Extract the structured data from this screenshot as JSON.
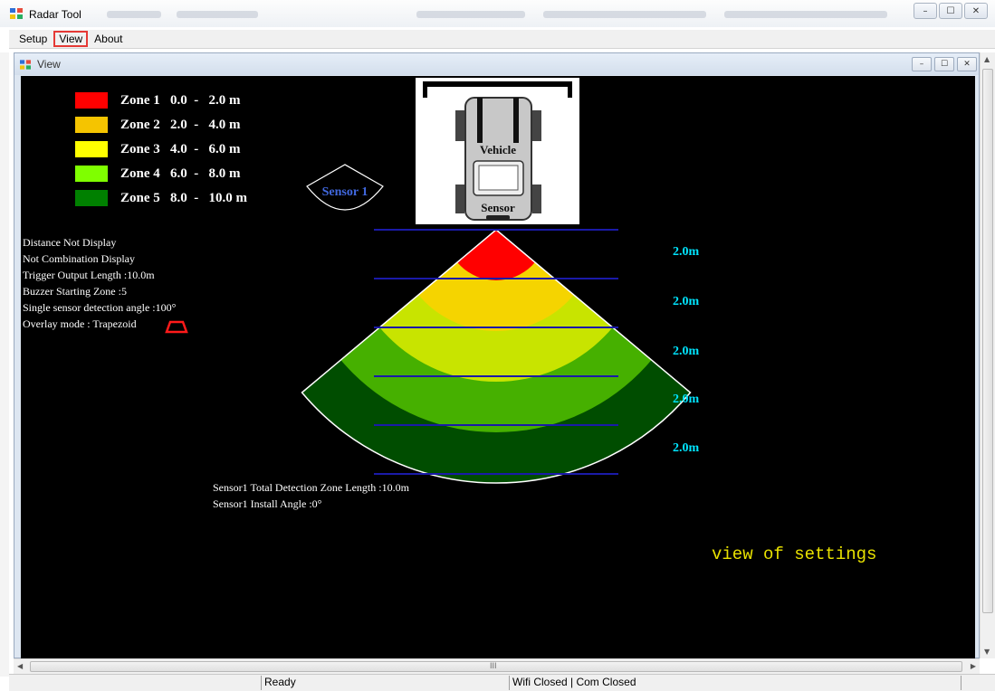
{
  "window": {
    "title": "Radar Tool",
    "controls": {
      "minimize": "–",
      "maximize": "☐",
      "close": "✕"
    }
  },
  "menu": {
    "items": [
      {
        "label": "Setup",
        "highlighted": false
      },
      {
        "label": "View",
        "highlighted": true
      },
      {
        "label": "About",
        "highlighted": false
      }
    ]
  },
  "child_window": {
    "title": "View",
    "controls": {
      "minimize": "–",
      "maximize": "☐",
      "close": "✕"
    }
  },
  "legend": {
    "zones": [
      {
        "label": "Zone 1",
        "from": "0.0",
        "to": "2.0 m",
        "color": "#ff0000"
      },
      {
        "label": "Zone 2",
        "from": "2.0",
        "to": "4.0 m",
        "color": "#f5c400"
      },
      {
        "label": "Zone 3",
        "from": "4.0",
        "to": "6.0 m",
        "color": "#ffff00"
      },
      {
        "label": "Zone 4",
        "from": "6.0",
        "to": "8.0 m",
        "color": "#7fff00"
      },
      {
        "label": "Zone 5",
        "from": "8.0",
        "to": "10.0 m",
        "color": "#008000"
      }
    ]
  },
  "sensor_badge": {
    "label": "Sensor 1"
  },
  "vehicle": {
    "vehicle_label": "Vehicle",
    "sensor_label": "Sensor"
  },
  "info_lines": [
    "Distance Not Display",
    "Not Combination Display",
    "Trigger Output Length :10.0m",
    "Buzzer Starting Zone :5",
    "Single sensor detection angle :100°",
    "Overlay mode : Trapezoid"
  ],
  "distance_labels": [
    "2.0m",
    "2.0m",
    "2.0m",
    "2.0m",
    "2.0m"
  ],
  "radar_fan": {
    "detection_angle_deg": 100,
    "zone_colors": [
      "#ff0000",
      "#f5d400",
      "#c8e400",
      "#46b000",
      "#004d00"
    ]
  },
  "bottom_info": [
    "Sensor1 Total Detection Zone Length :10.0m",
    "Sensor1 Install Angle :0°"
  ],
  "caption": "view of settings",
  "hscroll_center": "III",
  "status": {
    "left": "Ready",
    "right": "Wifi Closed | Com Closed"
  }
}
